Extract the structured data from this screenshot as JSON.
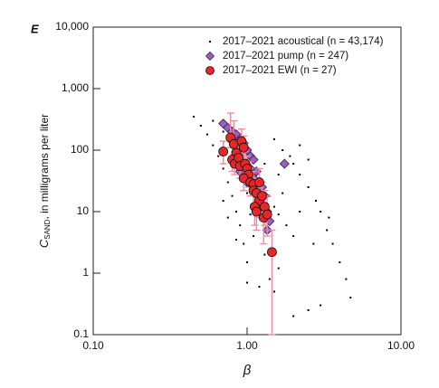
{
  "chart_data": {
    "type": "scatter",
    "panel_label": "E",
    "x_label": "β",
    "y_label": {
      "symbol": "C",
      "subscript": "SAND",
      "text": ", in milligrams per liter"
    },
    "log_x": true,
    "log_y": true,
    "xlim": [
      0.1,
      10
    ],
    "ylim": [
      0.1,
      10000
    ],
    "xticks": [
      {
        "value": 0.1,
        "label": "0.10"
      },
      {
        "value": 1,
        "label": "1.00"
      },
      {
        "value": 10,
        "label": "10.00"
      }
    ],
    "yticks": [
      0.1,
      1,
      10,
      100,
      {
        "value": 1000,
        "label": "1,000"
      },
      {
        "value": 10000,
        "label": "10,000"
      }
    ],
    "legend": "upper right",
    "series": [
      {
        "name": "2017–2021 acoustical (n = 43,174)",
        "color": "#000000",
        "marker": "square",
        "x": [
          0.45,
          0.5,
          0.55,
          0.6,
          0.65,
          0.7,
          0.75,
          0.8,
          0.85,
          0.9,
          0.95,
          1.0,
          0.6,
          0.7,
          0.8,
          0.9,
          1.0,
          1.1,
          1.2,
          1.3,
          1.4,
          1.5,
          1.6,
          1.8,
          2.0,
          1.5,
          1.7,
          2.0,
          2.2,
          2.5,
          2.8,
          3.0,
          3.3,
          3.6,
          4.0,
          4.4,
          4.7,
          2.5,
          2.2,
          1.9,
          1.6,
          1.2,
          1.1,
          1.3,
          1.4,
          1.2,
          1.5,
          1.0,
          1.6,
          2.2,
          1.0,
          0.75,
          0.7,
          0.95,
          1.3,
          2.5,
          3.0,
          2.0,
          3.4,
          2.7,
          1.7,
          0.85,
          1.05
        ],
        "values": [
          350,
          250,
          180,
          120,
          80,
          50,
          30,
          18,
          10,
          6,
          3,
          1.5,
          300,
          200,
          150,
          100,
          70,
          50,
          35,
          25,
          18,
          12,
          9,
          6,
          4,
          150,
          100,
          60,
          40,
          25,
          15,
          10,
          5,
          3,
          1.5,
          0.8,
          0.4,
          70,
          120,
          80,
          40,
          8,
          4,
          2,
          0.8,
          0.6,
          0.5,
          0.7,
          1.2,
          10,
          20,
          8,
          15,
          40,
          60,
          0.25,
          0.3,
          0.2,
          8,
          3,
          20,
          3.5,
          9
        ]
      },
      {
        "name": "2017–2021 pump (n = 247)",
        "color": "#9b5fc0",
        "marker": "diamond",
        "x": [
          0.7,
          0.75,
          0.8,
          0.85,
          0.9,
          0.95,
          0.8,
          0.88,
          0.92,
          1.0,
          1.05,
          1.1,
          0.98,
          1.05,
          1.15,
          1.1,
          1.2,
          1.25,
          1.15,
          1.3,
          1.2,
          1.25,
          1.35,
          1.3,
          1.4,
          1.35,
          1.75,
          1.0,
          0.9,
          1.1
        ],
        "values": [
          270,
          230,
          200,
          180,
          150,
          130,
          140,
          110,
          90,
          100,
          80,
          70,
          60,
          50,
          45,
          35,
          30,
          25,
          20,
          18,
          15,
          12,
          10,
          8,
          7,
          5,
          60,
          30,
          45,
          25
        ]
      },
      {
        "name": "2017–2021 EWI (n = 27)",
        "color": "#e8262a",
        "marker": "circle",
        "error_color": "#f08ca0",
        "x": [
          0.7,
          0.78,
          0.82,
          0.85,
          0.8,
          0.83,
          0.88,
          0.92,
          0.95,
          0.9,
          0.97,
          1.0,
          1.02,
          0.95,
          1.05,
          1.1,
          1.1,
          1.15,
          1.2,
          1.2,
          1.12,
          1.15,
          1.25,
          1.3,
          1.28,
          1.35,
          1.45
        ],
        "values": [
          95,
          160,
          125,
          90,
          70,
          60,
          75,
          140,
          110,
          55,
          60,
          50,
          40,
          35,
          30,
          28,
          22,
          20,
          30,
          15,
          12,
          10,
          18,
          12,
          8,
          9,
          2.2
        ],
        "y_low": [
          60,
          110,
          85,
          60,
          45,
          40,
          50,
          95,
          70,
          35,
          40,
          30,
          25,
          22,
          18,
          18,
          13,
          12,
          18,
          8,
          6,
          5,
          10,
          6,
          3,
          4,
          0.1
        ],
        "y_high": [
          140,
          400,
          300,
          140,
          110,
          95,
          120,
          220,
          170,
          90,
          95,
          80,
          65,
          55,
          50,
          45,
          35,
          35,
          50,
          25,
          20,
          18,
          30,
          22,
          16,
          18,
          5
        ]
      }
    ]
  }
}
